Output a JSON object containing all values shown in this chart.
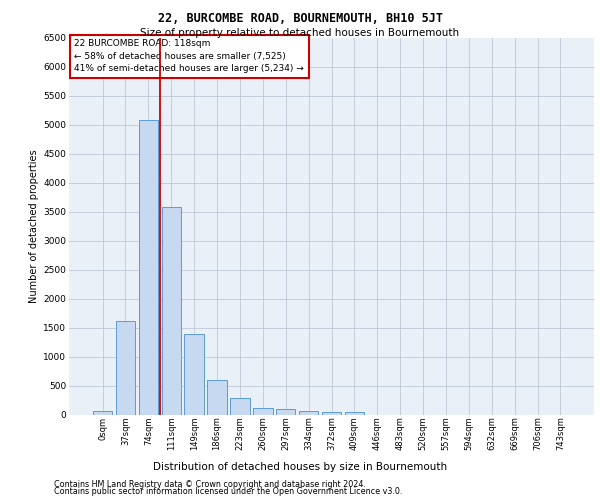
{
  "title": "22, BURCOMBE ROAD, BOURNEMOUTH, BH10 5JT",
  "subtitle": "Size of property relative to detached houses in Bournemouth",
  "xlabel": "Distribution of detached houses by size in Bournemouth",
  "ylabel": "Number of detached properties",
  "footer_line1": "Contains HM Land Registry data © Crown copyright and database right 2024.",
  "footer_line2": "Contains public sector information licensed under the Open Government Licence v3.0.",
  "bar_labels": [
    "0sqm",
    "37sqm",
    "74sqm",
    "111sqm",
    "149sqm",
    "186sqm",
    "223sqm",
    "260sqm",
    "297sqm",
    "334sqm",
    "372sqm",
    "409sqm",
    "446sqm",
    "483sqm",
    "520sqm",
    "557sqm",
    "594sqm",
    "632sqm",
    "669sqm",
    "706sqm",
    "743sqm"
  ],
  "bar_values": [
    75,
    1625,
    5075,
    3575,
    1400,
    600,
    285,
    125,
    100,
    75,
    50,
    50,
    0,
    0,
    0,
    0,
    0,
    0,
    0,
    0,
    0
  ],
  "bar_color": "#c6d9f0",
  "bar_edge_color": "#5b9bd5",
  "grid_color": "#c0c8d8",
  "bg_color": "#eaf0f8",
  "annotation_line1": "22 BURCOMBE ROAD: 118sqm",
  "annotation_line2": "← 58% of detached houses are smaller (7,525)",
  "annotation_line3": "41% of semi-detached houses are larger (5,234) →",
  "annotation_box_color": "#ffffff",
  "annotation_box_edge": "#cc0000",
  "red_line_color": "#cc0000",
  "red_line_bin": 2.5,
  "ylim": [
    0,
    6500
  ],
  "yticks": [
    0,
    500,
    1000,
    1500,
    2000,
    2500,
    3000,
    3500,
    4000,
    4500,
    5000,
    5500,
    6000,
    6500
  ]
}
